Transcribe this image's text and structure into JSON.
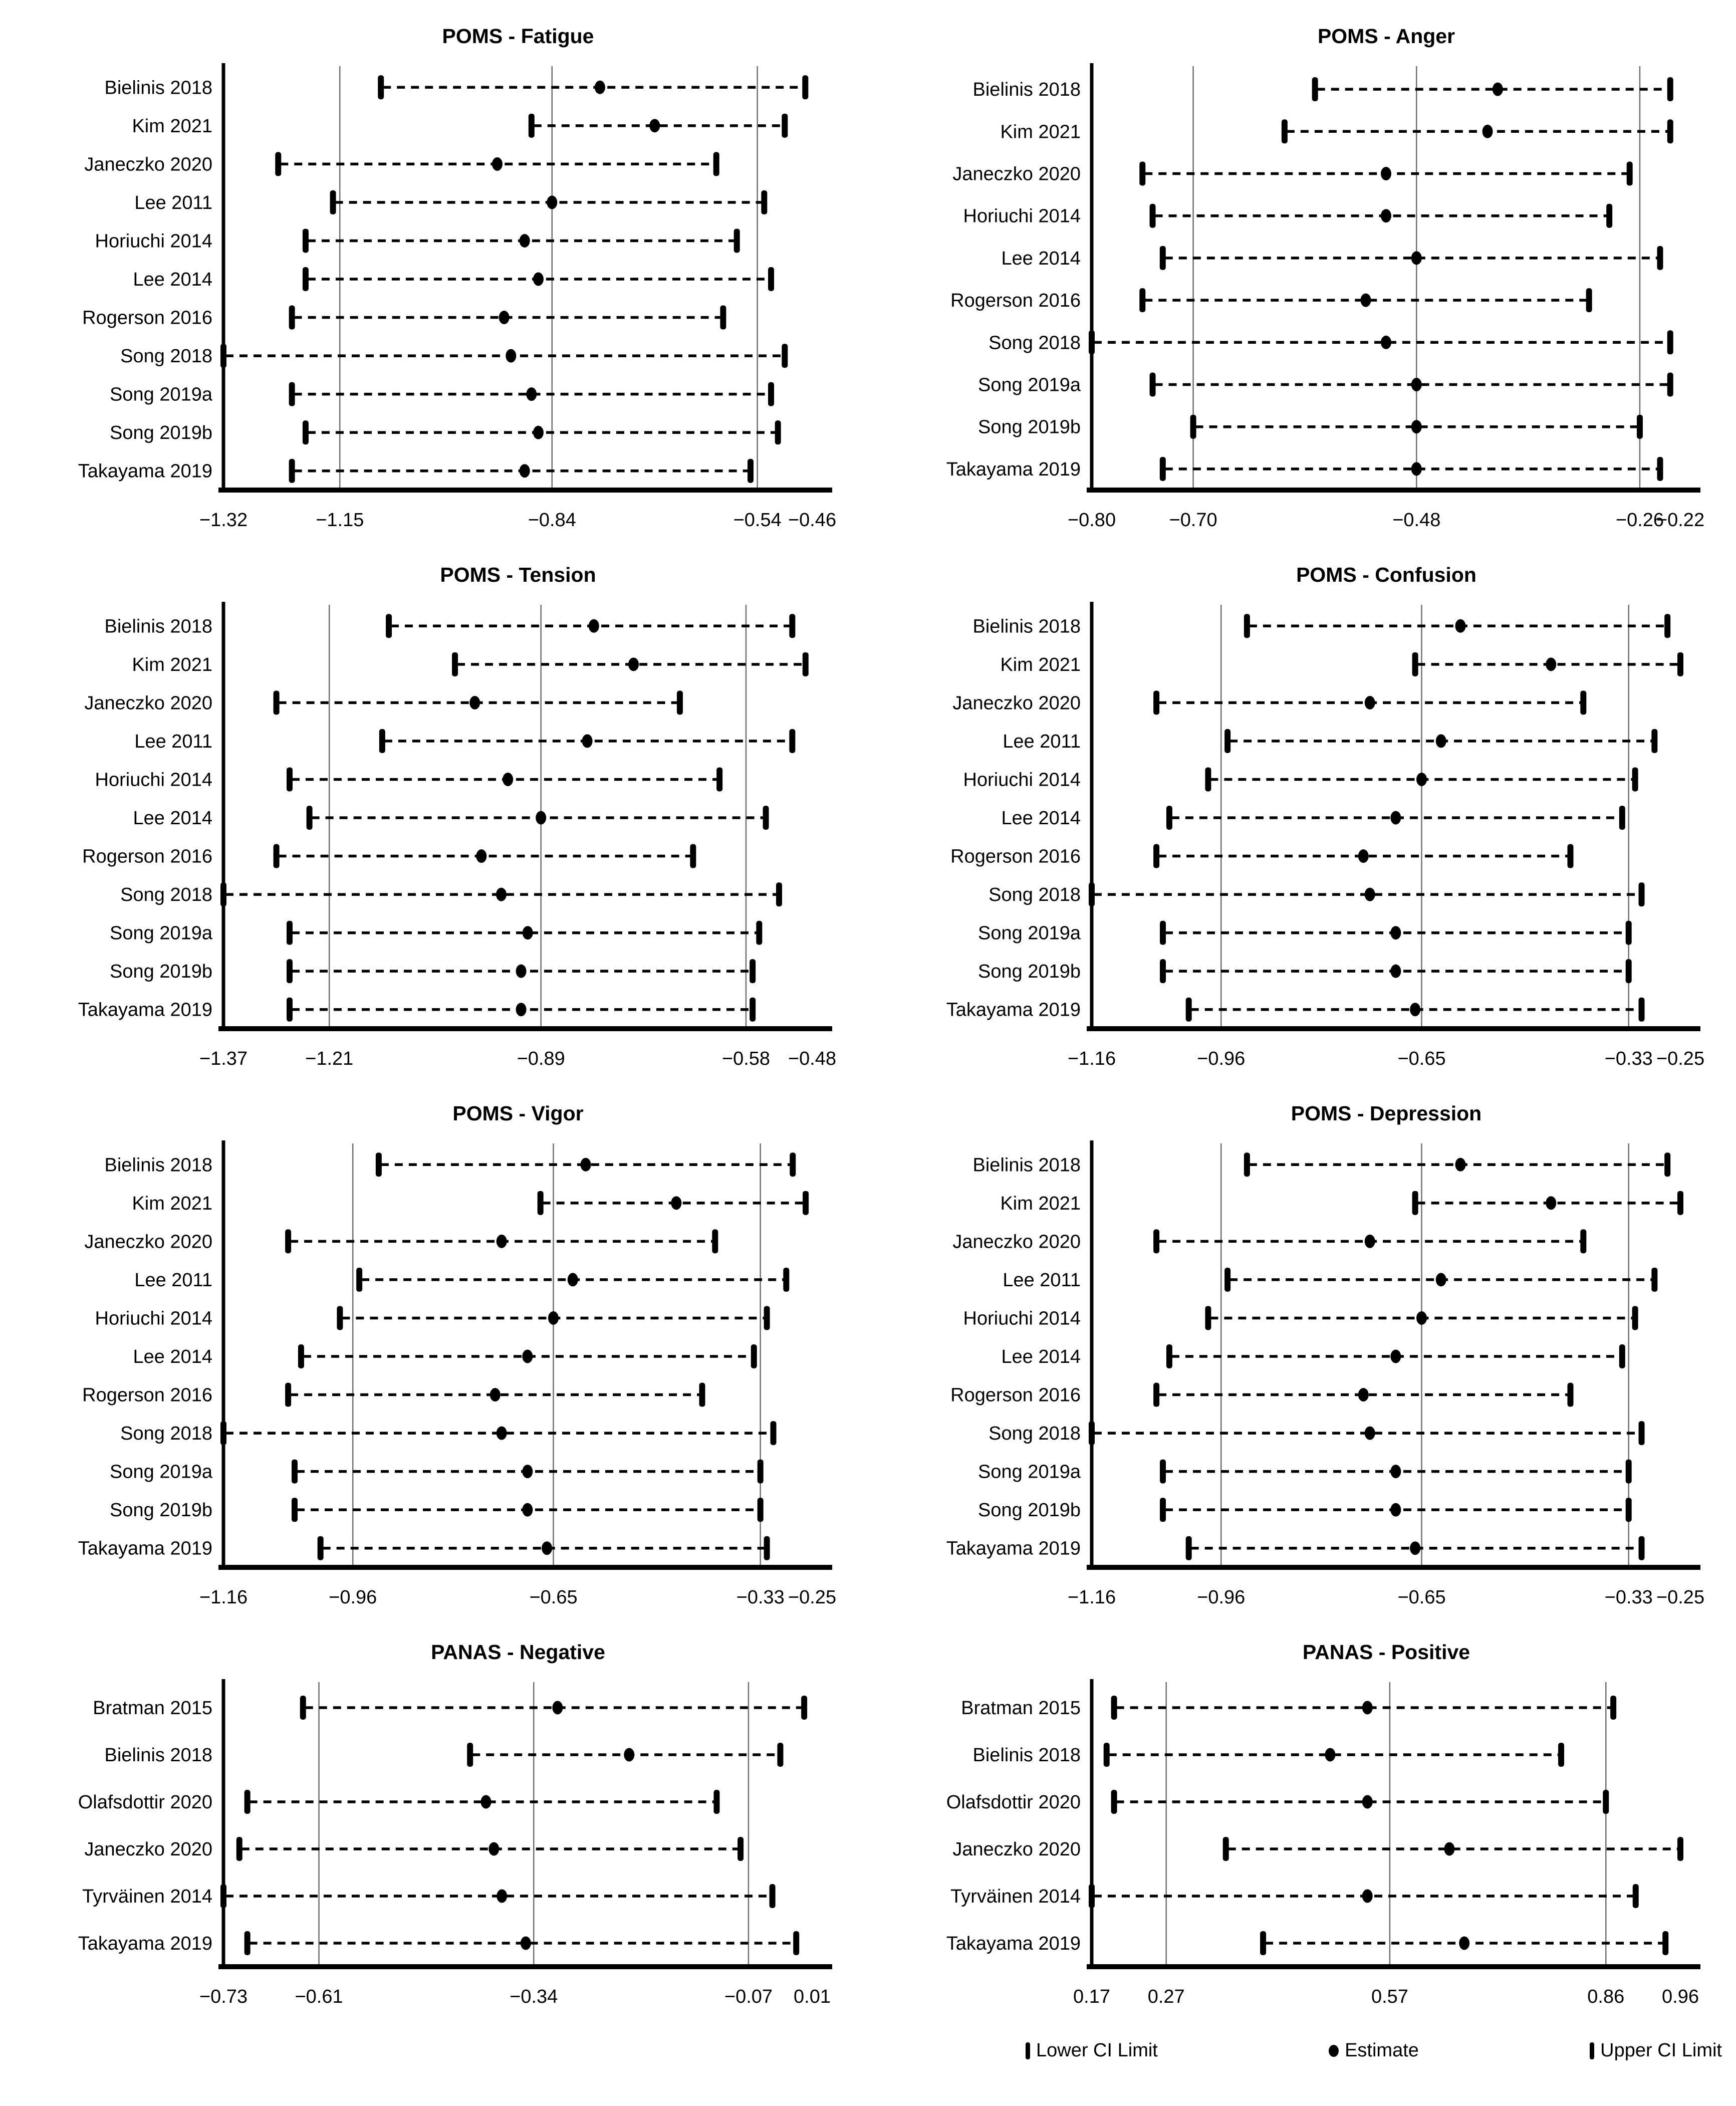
{
  "page": {
    "background": "#ffffff"
  },
  "style": {
    "marker_color": "#000000",
    "axis_color": "#000000",
    "gridline_color": "#6e6e6e"
  },
  "legend": {
    "items": [
      {
        "icon": "lower-ci-cap-icon",
        "label": "Lower CI Limit"
      },
      {
        "icon": "estimate-dot-icon",
        "label": "Estimate"
      },
      {
        "icon": "upper-ci-cap-icon",
        "label": "Upper CI Limit"
      }
    ]
  },
  "chart_data": [
    {
      "type": "scatter",
      "subtype": "forest-leave-one-out",
      "title": "POMS - Fatigue",
      "xlim": [
        -1.32,
        -0.46
      ],
      "grid": "vertical-on",
      "ticks": [
        {
          "v": -1.32,
          "label": "−1.32"
        },
        {
          "v": -1.15,
          "label": "−1.15"
        },
        {
          "v": -0.84,
          "label": "−0.84"
        },
        {
          "v": -0.54,
          "label": "−0.54"
        },
        {
          "v": -0.46,
          "label": "−0.46"
        }
      ],
      "gridlines": [
        -1.15,
        -0.84,
        -0.54
      ],
      "studies": [
        {
          "label": "Bielinis 2018",
          "lower": -1.09,
          "estimate": -0.77,
          "upper": -0.47
        },
        {
          "label": "Kim 2021",
          "lower": -0.87,
          "estimate": -0.69,
          "upper": -0.5
        },
        {
          "label": "Janeczko 2020",
          "lower": -1.24,
          "estimate": -0.92,
          "upper": -0.6
        },
        {
          "label": "Lee 2011",
          "lower": -1.16,
          "estimate": -0.84,
          "upper": -0.53
        },
        {
          "label": "Horiuchi 2014",
          "lower": -1.2,
          "estimate": -0.88,
          "upper": -0.57
        },
        {
          "label": "Lee 2014",
          "lower": -1.2,
          "estimate": -0.86,
          "upper": -0.52
        },
        {
          "label": "Rogerson 2016",
          "lower": -1.22,
          "estimate": -0.91,
          "upper": -0.59
        },
        {
          "label": "Song 2018",
          "lower": -1.32,
          "estimate": -0.9,
          "upper": -0.5
        },
        {
          "label": "Song 2019a",
          "lower": -1.22,
          "estimate": -0.87,
          "upper": -0.52
        },
        {
          "label": "Song 2019b",
          "lower": -1.2,
          "estimate": -0.86,
          "upper": -0.51
        },
        {
          "label": "Takayama 2019",
          "lower": -1.22,
          "estimate": -0.88,
          "upper": -0.55
        }
      ]
    },
    {
      "type": "scatter",
      "subtype": "forest-leave-one-out",
      "title": "POMS - Anger",
      "xlim": [
        -0.8,
        -0.22
      ],
      "grid": "vertical-on",
      "ticks": [
        {
          "v": -0.8,
          "label": "−0.80"
        },
        {
          "v": -0.7,
          "label": "−0.70"
        },
        {
          "v": -0.48,
          "label": "−0.48"
        },
        {
          "v": -0.26,
          "label": "−0.26"
        },
        {
          "v": -0.22,
          "label": "−0.22"
        }
      ],
      "gridlines": [
        -0.7,
        -0.48,
        -0.26
      ],
      "studies": [
        {
          "label": "Bielinis 2018",
          "lower": -0.58,
          "estimate": -0.4,
          "upper": -0.23
        },
        {
          "label": "Kim 2021",
          "lower": -0.61,
          "estimate": -0.41,
          "upper": -0.23
        },
        {
          "label": "Janeczko 2020",
          "lower": -0.75,
          "estimate": -0.51,
          "upper": -0.27
        },
        {
          "label": "Horiuchi 2014",
          "lower": -0.74,
          "estimate": -0.51,
          "upper": -0.29
        },
        {
          "label": "Lee 2014",
          "lower": -0.73,
          "estimate": -0.48,
          "upper": -0.24
        },
        {
          "label": "Rogerson 2016",
          "lower": -0.75,
          "estimate": -0.53,
          "upper": -0.31
        },
        {
          "label": "Song 2018",
          "lower": -0.8,
          "estimate": -0.51,
          "upper": -0.23
        },
        {
          "label": "Song 2019a",
          "lower": -0.74,
          "estimate": -0.48,
          "upper": -0.23
        },
        {
          "label": "Song 2019b",
          "lower": -0.7,
          "estimate": -0.48,
          "upper": -0.26
        },
        {
          "label": "Takayama 2019",
          "lower": -0.73,
          "estimate": -0.48,
          "upper": -0.24
        }
      ]
    },
    {
      "type": "scatter",
      "subtype": "forest-leave-one-out",
      "title": "POMS - Tension",
      "xlim": [
        -1.37,
        -0.48
      ],
      "grid": "vertical-on",
      "ticks": [
        {
          "v": -1.37,
          "label": "−1.37"
        },
        {
          "v": -1.21,
          "label": "−1.21"
        },
        {
          "v": -0.89,
          "label": "−0.89"
        },
        {
          "v": -0.58,
          "label": "−0.58"
        },
        {
          "v": -0.48,
          "label": "−0.48"
        }
      ],
      "gridlines": [
        -1.21,
        -0.89,
        -0.58
      ],
      "studies": [
        {
          "label": "Bielinis 2018",
          "lower": -1.12,
          "estimate": -0.81,
          "upper": -0.51
        },
        {
          "label": "Kim 2021",
          "lower": -1.02,
          "estimate": -0.75,
          "upper": -0.49
        },
        {
          "label": "Janeczko 2020",
          "lower": -1.29,
          "estimate": -0.99,
          "upper": -0.68
        },
        {
          "label": "Lee 2011",
          "lower": -1.13,
          "estimate": -0.82,
          "upper": -0.51
        },
        {
          "label": "Horiuchi 2014",
          "lower": -1.27,
          "estimate": -0.94,
          "upper": -0.62
        },
        {
          "label": "Lee 2014",
          "lower": -1.24,
          "estimate": -0.89,
          "upper": -0.55
        },
        {
          "label": "Rogerson 2016",
          "lower": -1.29,
          "estimate": -0.98,
          "upper": -0.66
        },
        {
          "label": "Song 2018",
          "lower": -1.37,
          "estimate": -0.95,
          "upper": -0.53
        },
        {
          "label": "Song 2019a",
          "lower": -1.27,
          "estimate": -0.91,
          "upper": -0.56
        },
        {
          "label": "Song 2019b",
          "lower": -1.27,
          "estimate": -0.92,
          "upper": -0.57
        },
        {
          "label": "Takayama 2019",
          "lower": -1.27,
          "estimate": -0.92,
          "upper": -0.57
        }
      ]
    },
    {
      "type": "scatter",
      "subtype": "forest-leave-one-out",
      "title": "POMS - Confusion",
      "xlim": [
        -1.16,
        -0.25
      ],
      "grid": "vertical-on",
      "ticks": [
        {
          "v": -1.16,
          "label": "−1.16"
        },
        {
          "v": -0.96,
          "label": "−0.96"
        },
        {
          "v": -0.65,
          "label": "−0.65"
        },
        {
          "v": -0.33,
          "label": "−0.33"
        },
        {
          "v": -0.25,
          "label": "−0.25"
        }
      ],
      "gridlines": [
        -0.96,
        -0.65,
        -0.33
      ],
      "studies": [
        {
          "label": "Bielinis 2018",
          "lower": -0.92,
          "estimate": -0.59,
          "upper": -0.27
        },
        {
          "label": "Kim 2021",
          "lower": -0.66,
          "estimate": -0.45,
          "upper": -0.25
        },
        {
          "label": "Janeczko 2020",
          "lower": -1.06,
          "estimate": -0.73,
          "upper": -0.4
        },
        {
          "label": "Lee 2011",
          "lower": -0.95,
          "estimate": -0.62,
          "upper": -0.29
        },
        {
          "label": "Horiuchi 2014",
          "lower": -0.98,
          "estimate": -0.65,
          "upper": -0.32
        },
        {
          "label": "Lee 2014",
          "lower": -1.04,
          "estimate": -0.69,
          "upper": -0.34
        },
        {
          "label": "Rogerson 2016",
          "lower": -1.06,
          "estimate": -0.74,
          "upper": -0.42
        },
        {
          "label": "Song 2018",
          "lower": -1.16,
          "estimate": -0.73,
          "upper": -0.31
        },
        {
          "label": "Song 2019a",
          "lower": -1.05,
          "estimate": -0.69,
          "upper": -0.33
        },
        {
          "label": "Song 2019b",
          "lower": -1.05,
          "estimate": -0.69,
          "upper": -0.33
        },
        {
          "label": "Takayama 2019",
          "lower": -1.01,
          "estimate": -0.66,
          "upper": -0.31
        }
      ]
    },
    {
      "type": "scatter",
      "subtype": "forest-leave-one-out",
      "title": "POMS - Vigor",
      "xlim": [
        -1.16,
        -0.25
      ],
      "grid": "vertical-on",
      "ticks": [
        {
          "v": -1.16,
          "label": "−1.16"
        },
        {
          "v": -0.96,
          "label": "−0.96"
        },
        {
          "v": -0.65,
          "label": "−0.65"
        },
        {
          "v": -0.33,
          "label": "−0.33"
        },
        {
          "v": -0.25,
          "label": "−0.25"
        }
      ],
      "gridlines": [
        -0.96,
        -0.65,
        -0.33
      ],
      "studies": [
        {
          "label": "Bielinis 2018",
          "lower": -0.92,
          "estimate": -0.6,
          "upper": -0.28
        },
        {
          "label": "Kim 2021",
          "lower": -0.67,
          "estimate": -0.46,
          "upper": -0.26
        },
        {
          "label": "Janeczko 2020",
          "lower": -1.06,
          "estimate": -0.73,
          "upper": -0.4
        },
        {
          "label": "Lee 2011",
          "lower": -0.95,
          "estimate": -0.62,
          "upper": -0.29
        },
        {
          "label": "Horiuchi 2014",
          "lower": -0.98,
          "estimate": -0.65,
          "upper": -0.32
        },
        {
          "label": "Lee 2014",
          "lower": -1.04,
          "estimate": -0.69,
          "upper": -0.34
        },
        {
          "label": "Rogerson 2016",
          "lower": -1.06,
          "estimate": -0.74,
          "upper": -0.42
        },
        {
          "label": "Song 2018",
          "lower": -1.16,
          "estimate": -0.73,
          "upper": -0.31
        },
        {
          "label": "Song 2019a",
          "lower": -1.05,
          "estimate": -0.69,
          "upper": -0.33
        },
        {
          "label": "Song 2019b",
          "lower": -1.05,
          "estimate": -0.69,
          "upper": -0.33
        },
        {
          "label": "Takayama 2019",
          "lower": -1.01,
          "estimate": -0.66,
          "upper": -0.32
        }
      ]
    },
    {
      "type": "scatter",
      "subtype": "forest-leave-one-out",
      "title": "POMS - Depression",
      "xlim": [
        -1.16,
        -0.25
      ],
      "grid": "vertical-on",
      "ticks": [
        {
          "v": -1.16,
          "label": "−1.16"
        },
        {
          "v": -0.96,
          "label": "−0.96"
        },
        {
          "v": -0.65,
          "label": "−0.65"
        },
        {
          "v": -0.33,
          "label": "−0.33"
        },
        {
          "v": -0.25,
          "label": "−0.25"
        }
      ],
      "gridlines": [
        -0.96,
        -0.65,
        -0.33
      ],
      "studies": [
        {
          "label": "Bielinis 2018",
          "lower": -0.92,
          "estimate": -0.59,
          "upper": -0.27
        },
        {
          "label": "Kim 2021",
          "lower": -0.66,
          "estimate": -0.45,
          "upper": -0.25
        },
        {
          "label": "Janeczko 2020",
          "lower": -1.06,
          "estimate": -0.73,
          "upper": -0.4
        },
        {
          "label": "Lee 2011",
          "lower": -0.95,
          "estimate": -0.62,
          "upper": -0.29
        },
        {
          "label": "Horiuchi 2014",
          "lower": -0.98,
          "estimate": -0.65,
          "upper": -0.32
        },
        {
          "label": "Lee 2014",
          "lower": -1.04,
          "estimate": -0.69,
          "upper": -0.34
        },
        {
          "label": "Rogerson 2016",
          "lower": -1.06,
          "estimate": -0.74,
          "upper": -0.42
        },
        {
          "label": "Song 2018",
          "lower": -1.16,
          "estimate": -0.73,
          "upper": -0.31
        },
        {
          "label": "Song 2019a",
          "lower": -1.05,
          "estimate": -0.69,
          "upper": -0.33
        },
        {
          "label": "Song 2019b",
          "lower": -1.05,
          "estimate": -0.69,
          "upper": -0.33
        },
        {
          "label": "Takayama 2019",
          "lower": -1.01,
          "estimate": -0.66,
          "upper": -0.31
        }
      ]
    },
    {
      "type": "scatter",
      "subtype": "forest-leave-one-out",
      "title": "PANAS - Negative",
      "xlim": [
        -0.73,
        0.01
      ],
      "grid": "vertical-on",
      "ticks": [
        {
          "v": -0.73,
          "label": "−0.73"
        },
        {
          "v": -0.61,
          "label": "−0.61"
        },
        {
          "v": -0.34,
          "label": "−0.34"
        },
        {
          "v": -0.07,
          "label": "−0.07"
        },
        {
          "v": 0.01,
          "label": "0.01"
        }
      ],
      "gridlines": [
        -0.61,
        -0.34,
        -0.07
      ],
      "studies": [
        {
          "label": "Bratman 2015",
          "lower": -0.63,
          "estimate": -0.31,
          "upper": 0.0
        },
        {
          "label": "Bielinis 2018",
          "lower": -0.42,
          "estimate": -0.22,
          "upper": -0.03
        },
        {
          "label": "Olafsdottir 2020",
          "lower": -0.7,
          "estimate": -0.4,
          "upper": -0.11
        },
        {
          "label": "Janeczko 2020",
          "lower": -0.71,
          "estimate": -0.39,
          "upper": -0.08
        },
        {
          "label": "Tyrväinen 2014",
          "lower": -0.73,
          "estimate": -0.38,
          "upper": -0.04
        },
        {
          "label": "Takayama 2019",
          "lower": -0.7,
          "estimate": -0.35,
          "upper": -0.01
        }
      ]
    },
    {
      "type": "scatter",
      "subtype": "forest-leave-one-out",
      "title": "PANAS - Positive",
      "xlim": [
        0.17,
        0.96
      ],
      "grid": "vertical-on",
      "ticks": [
        {
          "v": 0.17,
          "label": "0.17"
        },
        {
          "v": 0.27,
          "label": "0.27"
        },
        {
          "v": 0.57,
          "label": "0.57"
        },
        {
          "v": 0.86,
          "label": "0.86"
        },
        {
          "v": 0.96,
          "label": "0.96"
        }
      ],
      "gridlines": [
        0.27,
        0.57,
        0.86
      ],
      "studies": [
        {
          "label": "Bratman 2015",
          "lower": 0.2,
          "estimate": 0.54,
          "upper": 0.87
        },
        {
          "label": "Bielinis 2018",
          "lower": 0.19,
          "estimate": 0.49,
          "upper": 0.8
        },
        {
          "label": "Olafsdottir 2020",
          "lower": 0.2,
          "estimate": 0.54,
          "upper": 0.86
        },
        {
          "label": "Janeczko 2020",
          "lower": 0.35,
          "estimate": 0.65,
          "upper": 0.96
        },
        {
          "label": "Tyrväinen 2014",
          "lower": 0.17,
          "estimate": 0.54,
          "upper": 0.9
        },
        {
          "label": "Takayama 2019",
          "lower": 0.4,
          "estimate": 0.67,
          "upper": 0.94
        }
      ]
    }
  ]
}
